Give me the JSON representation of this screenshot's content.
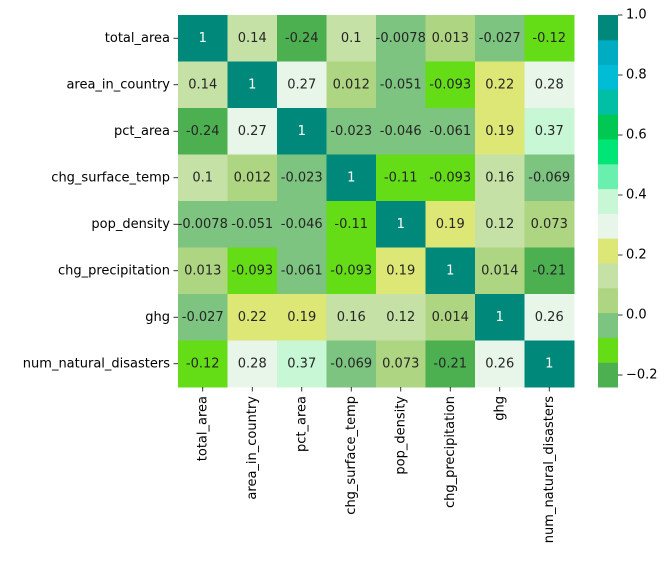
{
  "chart_data": {
    "type": "heatmap",
    "title": "",
    "xlabel": "",
    "ylabel": "",
    "labels": [
      "total_area",
      "area_in_country",
      "pct_area",
      "chg_surface_temp",
      "pop_density",
      "chg_precipitation",
      "ghg",
      "num_natural_disasters"
    ],
    "matrix": [
      [
        1,
        0.14,
        -0.24,
        0.1,
        -0.0078,
        0.013,
        -0.027,
        -0.12
      ],
      [
        0.14,
        1,
        0.27,
        0.012,
        -0.051,
        -0.093,
        0.22,
        0.28
      ],
      [
        -0.24,
        0.27,
        1,
        -0.023,
        -0.046,
        -0.061,
        0.19,
        0.37
      ],
      [
        0.1,
        0.012,
        -0.023,
        1,
        -0.11,
        -0.093,
        0.16,
        -0.069
      ],
      [
        -0.0078,
        -0.051,
        -0.046,
        -0.11,
        1,
        0.19,
        0.12,
        0.073
      ],
      [
        0.013,
        -0.093,
        -0.061,
        -0.093,
        0.19,
        1,
        0.014,
        -0.21
      ],
      [
        -0.027,
        0.22,
        0.19,
        0.16,
        0.12,
        0.014,
        1,
        0.26
      ],
      [
        -0.12,
        0.28,
        0.37,
        -0.069,
        0.073,
        -0.21,
        0.26,
        1
      ]
    ],
    "annotations": [
      [
        "1",
        "0.14",
        "-0.24",
        "0.1",
        "-0.0078",
        "0.013",
        "-0.027",
        "-0.12"
      ],
      [
        "0.14",
        "1",
        "0.27",
        "0.012",
        "-0.051",
        "-0.093",
        "0.22",
        "0.28"
      ],
      [
        "-0.24",
        "0.27",
        "1",
        "-0.023",
        "-0.046",
        "-0.061",
        "0.19",
        "0.37"
      ],
      [
        "0.1",
        "0.012",
        "-0.023",
        "1",
        "-0.11",
        "-0.093",
        "0.16",
        "-0.069"
      ],
      [
        "-0.0078",
        "-0.051",
        "-0.046",
        "-0.11",
        "1",
        "0.19",
        "0.12",
        "0.073"
      ],
      [
        "0.013",
        "-0.093",
        "-0.061",
        "-0.093",
        "0.19",
        "1",
        "0.014",
        "-0.21"
      ],
      [
        "-0.027",
        "0.22",
        "0.19",
        "0.16",
        "0.12",
        "0.014",
        "1",
        "0.26"
      ],
      [
        "-0.12",
        "0.28",
        "0.37",
        "-0.069",
        "0.073",
        "-0.21",
        "0.26",
        "1"
      ]
    ],
    "vmin": -0.24,
    "vmax": 1,
    "colormap": [
      "#4caf50",
      "#64dd17",
      "#7cc47f",
      "#aed581",
      "#c5e1a5",
      "#dce775",
      "#e8f5e9",
      "#c8f7d6",
      "#69f0ae",
      "#00e676",
      "#00c853",
      "#00bfa5",
      "#00bcd4",
      "#00acc1",
      "#00897b"
    ],
    "annotation_dark_text": "#262626",
    "annotation_light_text": "#ffffff",
    "colorbar": {
      "ticks": [
        -0.2,
        0.0,
        0.2,
        0.4,
        0.6,
        0.8,
        1.0
      ],
      "tick_labels": [
        "−0.2",
        "0.0",
        "0.2",
        "0.4",
        "0.6",
        "0.8",
        "1.0"
      ]
    }
  }
}
